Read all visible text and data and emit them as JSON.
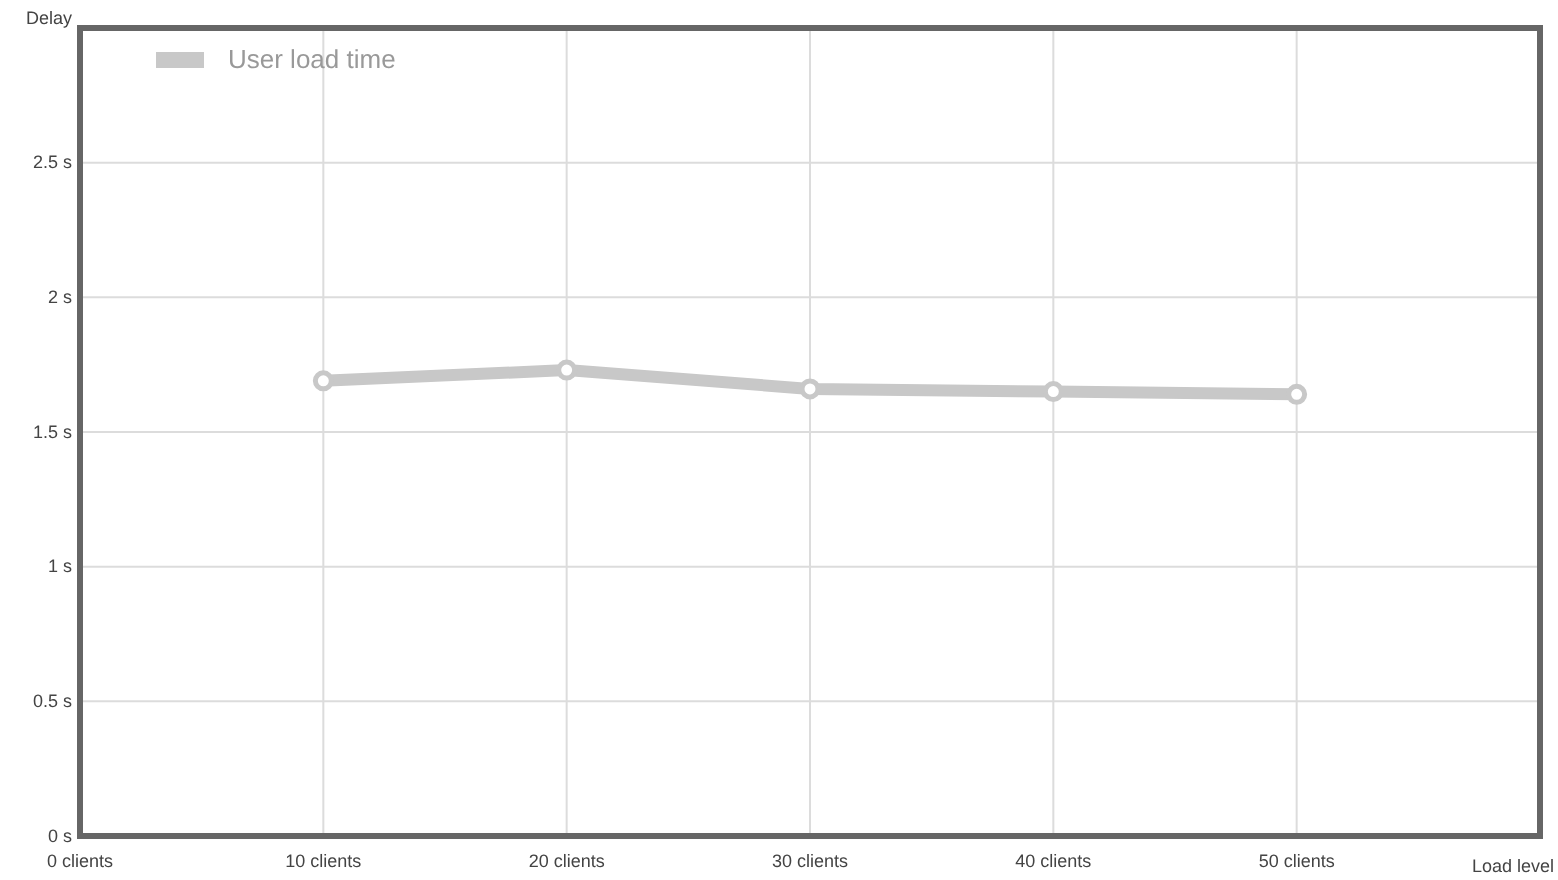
{
  "chart_data": {
    "type": "line",
    "xlabel": "Load level",
    "ylabel": "Delay",
    "x": [
      10,
      20,
      30,
      40,
      50
    ],
    "series": [
      {
        "name": "User load time",
        "color": "#c8c8c8",
        "values": [
          1.69,
          1.73,
          1.66,
          1.65,
          1.64
        ]
      }
    ],
    "xlim": [
      0,
      60
    ],
    "xticks": [
      {
        "value": 0,
        "label": "0 clients"
      },
      {
        "value": 10,
        "label": "10 clients"
      },
      {
        "value": 20,
        "label": "20 clients"
      },
      {
        "value": 30,
        "label": "30 clients"
      },
      {
        "value": 40,
        "label": "40 clients"
      },
      {
        "value": 50,
        "label": "50 clients"
      }
    ],
    "ylim": [
      0,
      3
    ],
    "yticks": [
      {
        "value": 0,
        "label": "0 s"
      },
      {
        "value": 0.5,
        "label": "0.5 s"
      },
      {
        "value": 1,
        "label": "1 s"
      },
      {
        "value": 1.5,
        "label": "1.5 s"
      },
      {
        "value": 2,
        "label": "2 s"
      },
      {
        "value": 2.5,
        "label": "2.5 s"
      }
    ],
    "grid": true,
    "legend": "top left",
    "marker": "circle",
    "line_style": "solid"
  }
}
